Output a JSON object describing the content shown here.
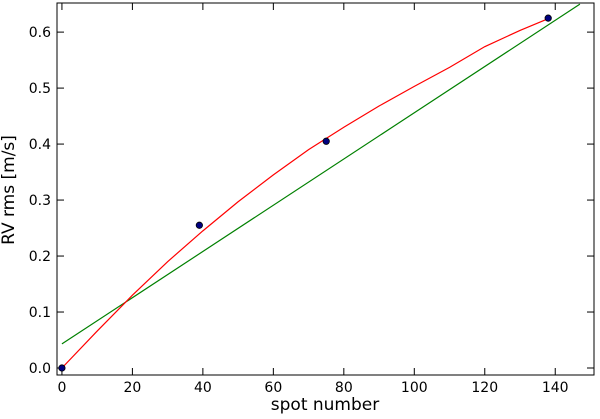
{
  "chart_data": {
    "type": "scatter",
    "xlabel": "spot number",
    "ylabel": "RV rms [m/s]",
    "xlim": [
      -1.4,
      151
    ],
    "ylim": [
      -0.0125,
      0.652
    ],
    "xticks": [
      0,
      20,
      40,
      60,
      80,
      100,
      120,
      140
    ],
    "yticks": [
      {
        "value": 0,
        "label": "0.0"
      },
      0.1,
      0.2,
      0.3,
      0.4,
      0.5,
      0.6
    ],
    "series": [
      {
        "type": "line",
        "color": "#008000",
        "x": [
          0,
          147
        ],
        "values": [
          0.043,
          0.65
        ]
      },
      {
        "type": "line",
        "color": "#ff0000",
        "x": [
          0,
          10,
          20,
          30,
          40,
          50,
          60,
          70,
          80,
          90,
          100,
          110,
          120,
          130,
          138
        ],
        "values": [
          0,
          0.066,
          0.13,
          0.19,
          0.245,
          0.297,
          0.345,
          0.39,
          0.43,
          0.468,
          0.503,
          0.537,
          0.574,
          0.603,
          0.624
        ]
      },
      {
        "type": "scatter",
        "color": "#000080",
        "x": [
          0,
          39,
          75,
          138
        ],
        "values": [
          0,
          0.255,
          0.405,
          0.625
        ]
      }
    ]
  }
}
